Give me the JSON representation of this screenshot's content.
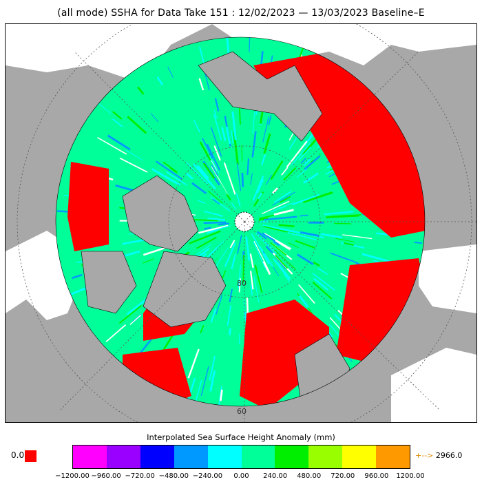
{
  "title": "(all mode) SSHA for Data Take 151 : 12/02/2023 — 13/03/2023 Baseline–E",
  "map": {
    "projection": "north-polar-stereographic",
    "latitude_labels": [
      "80",
      "60"
    ],
    "colors": {
      "land": "#a8a8a8",
      "ocean_background": "#ffffff",
      "coastline": "#000000",
      "graticule": "#555555",
      "pole_hole": "#ffffff"
    }
  },
  "legend": {
    "title": "Interpolated Sea Surface Height Anomaly (mm)",
    "below_range_value": "0.0",
    "below_range_color": "#ff0000",
    "above_range_value": "2966.0",
    "above_range_arrow": "+-->",
    "tick_labels": [
      "−1200.00",
      "−960.00",
      "−720.00",
      "−480.00",
      "−240.00",
      "0.00",
      "240.00",
      "480.00",
      "720.00",
      "960.00",
      "1200.00"
    ],
    "colors": [
      "#ff00ff",
      "#9900ff",
      "#0000ff",
      "#0099ff",
      "#00ffff",
      "#00ff99",
      "#00ee00",
      "#99ff00",
      "#ffff00",
      "#ff9900"
    ]
  }
}
